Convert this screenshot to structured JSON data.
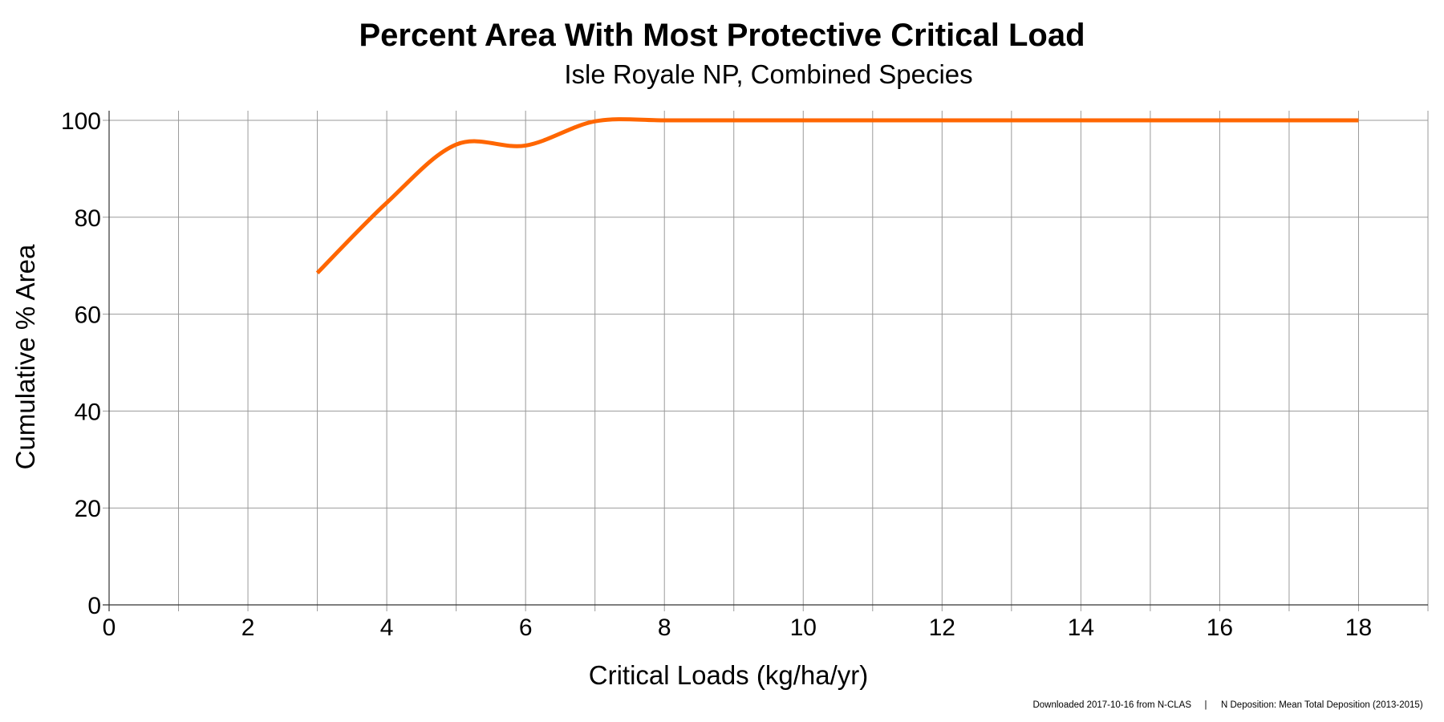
{
  "chart_data": {
    "type": "line",
    "title": "Percent Area With Most Protective Critical Load",
    "subtitle": "Isle Royale NP, Combined Species",
    "xlabel": "Critical Loads (kg/ha/yr)",
    "ylabel": "Cumulative % Area",
    "xlim": [
      0,
      19
    ],
    "ylim": [
      0,
      100
    ],
    "x_ticks": [
      0,
      2,
      4,
      6,
      8,
      10,
      12,
      14,
      16,
      18
    ],
    "y_ticks": [
      0,
      20,
      40,
      60,
      80,
      100
    ],
    "x_gridlines_every": 1,
    "grid": true,
    "legend": "none",
    "series": [
      {
        "color": "#ff6600",
        "x": [
          3,
          4,
          5,
          6,
          7,
          8,
          9,
          10,
          11,
          12,
          13,
          14,
          15,
          16,
          17,
          18
        ],
        "y": [
          68.5,
          83,
          95,
          94.8,
          99.8,
          100,
          100,
          100,
          100,
          100,
          100,
          100,
          100,
          100,
          100,
          100
        ]
      }
    ]
  },
  "footer": {
    "downloaded": "Downloaded 2017-10-16 from N-CLAS",
    "separator": "|",
    "deposition": "N Deposition: Mean Total Deposition (2013-2015)"
  }
}
